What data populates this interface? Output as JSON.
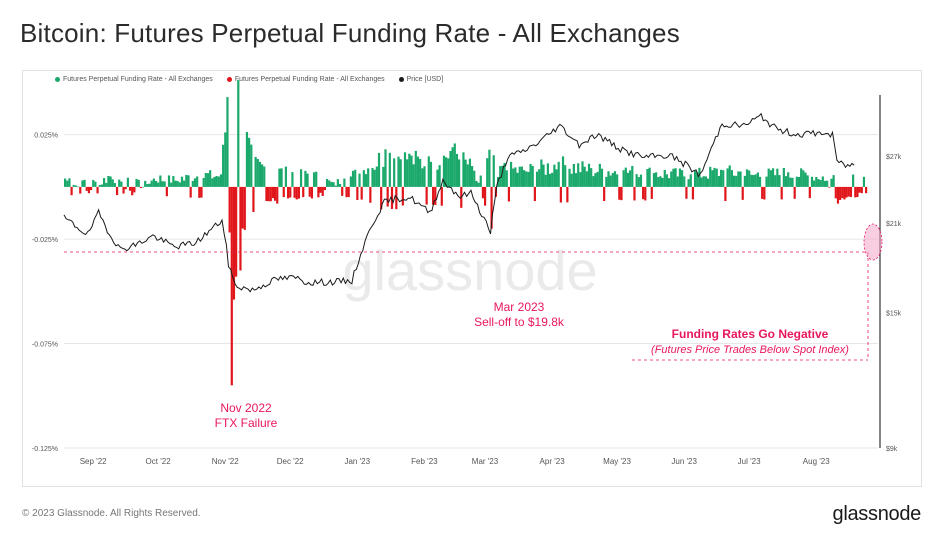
{
  "title": "Bitcoin: Futures Perpetual Funding Rate - All Exchanges",
  "footer": {
    "copyright": "© 2023 Glassnode. All Rights Reserved.",
    "brand": "glassnode"
  },
  "watermark": "glassnode",
  "colors": {
    "positive": "#1aa86b",
    "negative": "#e0161b",
    "price": "#1a1a1a",
    "annotation": "#e8175d",
    "grid": "#e6e6e6"
  },
  "chart_data": {
    "type": "bar+line",
    "legend": [
      {
        "label": "Futures Perpetual Funding Rate - All Exchanges",
        "color": "#1aa86b"
      },
      {
        "label": "Futures Perpetual Funding Rate - All Exchanges",
        "color": "#e0161b"
      },
      {
        "label": "Price [USD]",
        "color": "#1a1a1a"
      }
    ],
    "x_ticks": [
      "Sep '22",
      "Oct '22",
      "Nov '22",
      "Dec '22",
      "Jan '23",
      "Feb '23",
      "Mar '23",
      "Apr '23",
      "May '23",
      "Jun '23",
      "Jul '23",
      "Aug '23"
    ],
    "left_axis": {
      "ticks": [
        "0.025%",
        "-0.025%",
        "-0.075%",
        "-0.125%"
      ],
      "values": [
        0.025,
        -0.025,
        -0.075,
        -0.125
      ],
      "ylim": [
        -0.125,
        0.044
      ]
    },
    "right_axis": {
      "ticks": [
        "$27k",
        "$21k",
        "$15k",
        "$9k"
      ],
      "values": [
        27000,
        21000,
        15000,
        9000
      ],
      "log": true,
      "ylim": [
        9000,
        34000
      ]
    },
    "x_range": [
      "2022-08-25",
      "2023-09-05"
    ],
    "funding_rate_series": {
      "name": "Futures Perpetual Funding Rate - All Exchanges",
      "x": [
        "2022-08-25",
        "2022-09-05",
        "2022-09-15",
        "2022-09-25",
        "2022-10-05",
        "2022-10-15",
        "2022-10-25",
        "2022-11-05",
        "2022-11-08",
        "2022-11-10",
        "2022-11-14",
        "2022-11-20",
        "2022-12-01",
        "2022-12-10",
        "2022-12-20",
        "2023-01-01",
        "2023-01-10",
        "2023-01-20",
        "2023-02-01",
        "2023-02-10",
        "2023-02-20",
        "2023-03-01",
        "2023-03-10",
        "2023-03-14",
        "2023-03-25",
        "2023-04-10",
        "2023-04-25",
        "2023-05-10",
        "2023-05-25",
        "2023-06-10",
        "2023-06-25",
        "2023-07-10",
        "2023-07-25",
        "2023-08-10",
        "2023-08-17",
        "2023-08-20",
        "2023-08-30"
      ],
      "values": [
        0.004,
        -0.003,
        0.005,
        -0.004,
        0.004,
        0.003,
        0.005,
        0.006,
        0.043,
        -0.095,
        -0.04,
        -0.012,
        -0.008,
        -0.006,
        -0.005,
        0.004,
        0.008,
        0.018,
        0.015,
        0.012,
        0.019,
        0.01,
        -0.02,
        0.01,
        0.008,
        0.012,
        0.009,
        0.008,
        0.007,
        0.006,
        0.008,
        0.006,
        0.007,
        0.005,
        -0.008,
        -0.006,
        -0.003
      ]
    },
    "price_series": {
      "name": "Price [USD]",
      "x": [
        "2022-08-25",
        "2022-09-05",
        "2022-09-10",
        "2022-09-15",
        "2022-09-20",
        "2022-09-28",
        "2022-10-05",
        "2022-10-15",
        "2022-10-25",
        "2022-11-01",
        "2022-11-06",
        "2022-11-09",
        "2022-11-12",
        "2022-11-20",
        "2022-12-01",
        "2022-12-10",
        "2022-12-15",
        "2022-12-25",
        "2023-01-05",
        "2023-01-14",
        "2023-01-20",
        "2023-01-25",
        "2023-02-01",
        "2023-02-10",
        "2023-02-16",
        "2023-02-24",
        "2023-03-01",
        "2023-03-10",
        "2023-03-13",
        "2023-03-18",
        "2023-03-25",
        "2023-04-01",
        "2023-04-11",
        "2023-04-20",
        "2023-04-28",
        "2023-05-10",
        "2023-05-20",
        "2023-06-01",
        "2023-06-10",
        "2023-06-15",
        "2023-06-21",
        "2023-06-25",
        "2023-07-05",
        "2023-07-13",
        "2023-07-20",
        "2023-07-30",
        "2023-08-10",
        "2023-08-15",
        "2023-08-17",
        "2023-08-20",
        "2023-08-25"
      ],
      "values": [
        21400,
        20100,
        21800,
        20200,
        19000,
        19400,
        20000,
        19200,
        19500,
        20500,
        21200,
        18000,
        16600,
        16300,
        17000,
        17100,
        16800,
        16800,
        16900,
        20800,
        22700,
        23000,
        23100,
        21800,
        24600,
        23200,
        23500,
        20300,
        24100,
        26900,
        27500,
        28400,
        30300,
        28200,
        29300,
        27600,
        26900,
        27100,
        25900,
        25100,
        28300,
        30500,
        30300,
        31400,
        29900,
        29300,
        29500,
        29200,
        26600,
        26100,
        26100
      ]
    },
    "annotations": [
      {
        "date": "2022-11-09",
        "lines": [
          "Nov 2022",
          "FTX Failure"
        ]
      },
      {
        "date": "2023-03-10",
        "lines": [
          "Mar 2023",
          "Sell-off to $19.8k"
        ]
      },
      {
        "date": "2023-08-17",
        "lines": [
          "Funding Rates Go Negative",
          "(Futures Price Trades Below Spot Index)"
        ]
      }
    ]
  }
}
